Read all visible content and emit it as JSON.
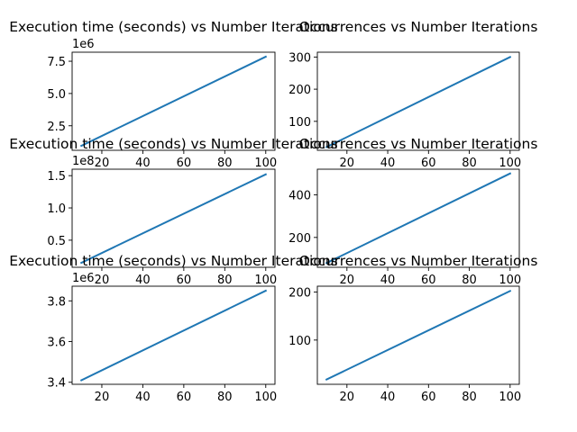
{
  "chart_data": [
    {
      "type": "line",
      "title": "Execution time (seconds) vs Number Iterations",
      "offset_label": "1e6",
      "x": [
        10,
        100
      ],
      "series": [
        {
          "values": [
            0.95,
            7.85
          ]
        }
      ],
      "xlim": [
        5.5,
        104.5
      ],
      "ylim": [
        0.6,
        8.2
      ],
      "xticks": [
        20,
        40,
        60,
        80,
        100
      ],
      "yticks": [
        2.5,
        5.0,
        7.5
      ],
      "ytick_labels": [
        "2.5",
        "5.0",
        "7.5"
      ],
      "grid": false,
      "color": "#1f77b4"
    },
    {
      "type": "line",
      "title": "Occurrences vs Number Iterations",
      "offset_label": "",
      "x": [
        10,
        100
      ],
      "series": [
        {
          "values": [
            20,
            300
          ]
        }
      ],
      "xlim": [
        5.5,
        104.5
      ],
      "ylim": [
        10,
        315
      ],
      "xticks": [
        20,
        40,
        60,
        80,
        100
      ],
      "yticks": [
        100,
        200,
        300
      ],
      "ytick_labels": [
        "100",
        "200",
        "300"
      ],
      "grid": false,
      "color": "#1f77b4"
    },
    {
      "type": "line",
      "title": "Execution time (seconds) vs Number Iterations",
      "offset_label": "1e8",
      "x": [
        10,
        100
      ],
      "series": [
        {
          "values": [
            0.15,
            1.52
          ]
        }
      ],
      "xlim": [
        5.5,
        104.5
      ],
      "ylim": [
        0.08,
        1.6
      ],
      "xticks": [
        20,
        40,
        60,
        80,
        100
      ],
      "yticks": [
        0.5,
        1.0,
        1.5
      ],
      "ytick_labels": [
        "0.5",
        "1.0",
        "1.5"
      ],
      "grid": false,
      "color": "#1f77b4"
    },
    {
      "type": "line",
      "title": "Occurrences vs Number Iterations",
      "offset_label": "",
      "x": [
        10,
        100
      ],
      "series": [
        {
          "values": [
            80,
            500
          ]
        }
      ],
      "xlim": [
        5.5,
        104.5
      ],
      "ylim": [
        60,
        520
      ],
      "xticks": [
        20,
        40,
        60,
        80,
        100
      ],
      "yticks": [
        200,
        400
      ],
      "ytick_labels": [
        "200",
        "400"
      ],
      "grid": false,
      "color": "#1f77b4"
    },
    {
      "type": "line",
      "title": "Execution time (seconds) vs Number Iterations",
      "offset_label": "1e6",
      "x": [
        10,
        100
      ],
      "series": [
        {
          "values": [
            3.41,
            3.85
          ]
        }
      ],
      "xlim": [
        5.5,
        104.5
      ],
      "ylim": [
        3.39,
        3.872
      ],
      "xticks": [
        20,
        40,
        60,
        80,
        100
      ],
      "yticks": [
        3.4,
        3.6,
        3.8
      ],
      "ytick_labels": [
        "3.4",
        "3.6",
        "3.8"
      ],
      "grid": false,
      "color": "#1f77b4"
    },
    {
      "type": "line",
      "title": "Occurrences vs Number Iterations",
      "offset_label": "",
      "x": [
        10,
        100
      ],
      "series": [
        {
          "values": [
            18,
            202
          ]
        }
      ],
      "xlim": [
        5.5,
        104.5
      ],
      "ylim": [
        8,
        212
      ],
      "xticks": [
        20,
        40,
        60,
        80,
        100
      ],
      "yticks": [
        100,
        200
      ],
      "ytick_labels": [
        "100",
        "200"
      ],
      "grid": false,
      "color": "#1f77b4"
    }
  ]
}
